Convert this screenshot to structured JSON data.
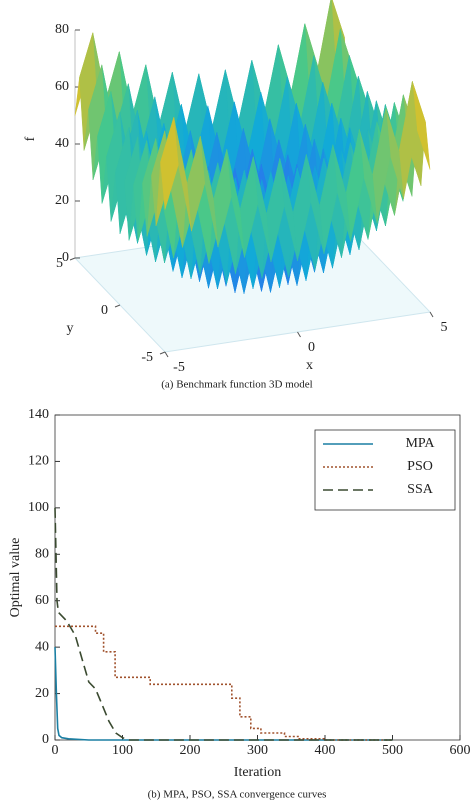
{
  "chart_data": [
    {
      "type": "surface",
      "caption": "(a) Benchmark function 3D model",
      "xlabel": "x",
      "ylabel": "y",
      "zlabel": "f",
      "x": [
        -5,
        -4.5,
        -4,
        -3.5,
        -3,
        -2.5,
        -2,
        -1.5,
        -1,
        -0.5,
        0,
        0.5,
        1,
        1.5,
        2,
        2.5,
        3,
        3.5,
        4,
        4.5,
        5
      ],
      "y": [
        -5,
        -4.5,
        -4,
        -3.5,
        -3,
        -2.5,
        -2,
        -1.5,
        -1,
        -0.5,
        0,
        0.5,
        1,
        1.5,
        2,
        2.5,
        3,
        3.5,
        4,
        4.5,
        5
      ],
      "z": [
        [
          50,
          65,
          41,
          57,
          34,
          51,
          29,
          47,
          26,
          45,
          25,
          45,
          26,
          47,
          29,
          51,
          34,
          57,
          41,
          65,
          50
        ],
        [
          65,
          80,
          56,
          72,
          49,
          66,
          44,
          62,
          41,
          60,
          40,
          60,
          41,
          62,
          44,
          66,
          49,
          72,
          56,
          80,
          65
        ],
        [
          41,
          56,
          32,
          48,
          25,
          42,
          20,
          38,
          17,
          36,
          16,
          36,
          17,
          38,
          20,
          42,
          25,
          48,
          32,
          56,
          41
        ],
        [
          57,
          72,
          48,
          64,
          41,
          58,
          36,
          54,
          33,
          52,
          32,
          52,
          33,
          54,
          36,
          58,
          41,
          64,
          48,
          72,
          57
        ],
        [
          34,
          49,
          25,
          41,
          18,
          35,
          13,
          31,
          10,
          29,
          9,
          29,
          10,
          31,
          13,
          35,
          18,
          41,
          25,
          49,
          34
        ],
        [
          51,
          66,
          42,
          58,
          35,
          52,
          30,
          48,
          27,
          46,
          26,
          46,
          27,
          48,
          30,
          52,
          35,
          58,
          42,
          66,
          51
        ],
        [
          29,
          44,
          20,
          36,
          13,
          30,
          8,
          26,
          5,
          24,
          4,
          24,
          5,
          26,
          8,
          30,
          13,
          36,
          20,
          44,
          29
        ],
        [
          47,
          62,
          38,
          54,
          31,
          48,
          26,
          44,
          23,
          42,
          22,
          42,
          23,
          44,
          26,
          48,
          31,
          54,
          38,
          62,
          47
        ],
        [
          26,
          41,
          17,
          33,
          10,
          27,
          5,
          23,
          2,
          21,
          1,
          21,
          2,
          23,
          5,
          27,
          10,
          33,
          17,
          41,
          26
        ],
        [
          45,
          60,
          36,
          52,
          29,
          46,
          24,
          42,
          21,
          40,
          20,
          40,
          21,
          42,
          24,
          46,
          29,
          52,
          36,
          60,
          45
        ],
        [
          25,
          40,
          16,
          32,
          9,
          26,
          4,
          22,
          1,
          20,
          0,
          20,
          1,
          22,
          4,
          26,
          9,
          32,
          16,
          40,
          25
        ],
        [
          45,
          60,
          36,
          52,
          29,
          46,
          24,
          42,
          21,
          40,
          20,
          40,
          21,
          42,
          24,
          46,
          29,
          52,
          36,
          60,
          45
        ],
        [
          26,
          41,
          17,
          33,
          10,
          27,
          5,
          23,
          2,
          21,
          1,
          21,
          2,
          23,
          5,
          27,
          10,
          33,
          17,
          41,
          26
        ],
        [
          47,
          62,
          38,
          54,
          31,
          48,
          26,
          44,
          23,
          42,
          22,
          42,
          23,
          44,
          26,
          48,
          31,
          54,
          38,
          62,
          47
        ],
        [
          29,
          44,
          20,
          36,
          13,
          30,
          8,
          26,
          5,
          24,
          4,
          24,
          5,
          26,
          8,
          30,
          13,
          36,
          20,
          44,
          29
        ],
        [
          51,
          66,
          42,
          58,
          35,
          52,
          30,
          48,
          27,
          46,
          26,
          46,
          27,
          48,
          30,
          52,
          35,
          58,
          42,
          66,
          51
        ],
        [
          34,
          49,
          25,
          41,
          18,
          35,
          13,
          31,
          10,
          29,
          9,
          29,
          10,
          31,
          13,
          35,
          18,
          41,
          25,
          49,
          34
        ],
        [
          57,
          72,
          48,
          64,
          41,
          58,
          36,
          54,
          33,
          52,
          32,
          52,
          33,
          54,
          36,
          58,
          41,
          64,
          48,
          72,
          57
        ],
        [
          41,
          56,
          32,
          48,
          25,
          42,
          20,
          38,
          17,
          36,
          16,
          36,
          17,
          38,
          20,
          42,
          25,
          48,
          32,
          56,
          41
        ],
        [
          65,
          80,
          56,
          72,
          49,
          66,
          44,
          62,
          41,
          60,
          40,
          60,
          41,
          62,
          44,
          66,
          49,
          72,
          56,
          80,
          65
        ],
        [
          50,
          65,
          41,
          57,
          34,
          51,
          29,
          47,
          26,
          45,
          25,
          45,
          26,
          47,
          29,
          51,
          34,
          57,
          41,
          65,
          50
        ]
      ],
      "xlim": [
        -5,
        5
      ],
      "ylim": [
        -5,
        5
      ],
      "zlim": [
        0,
        80
      ],
      "xticks": [
        -5,
        0,
        5
      ],
      "yticks": [
        -5,
        0,
        5
      ],
      "zticks": [
        0,
        20,
        40,
        60,
        80
      ]
    },
    {
      "type": "line",
      "caption": "(b) MPA, PSO, SSA convergence curves",
      "xlabel": "Iteration",
      "ylabel": "Optimal value",
      "xlim": [
        0,
        600
      ],
      "ylim": [
        0,
        140
      ],
      "xticks": [
        0,
        100,
        200,
        300,
        400,
        500,
        600
      ],
      "yticks": [
        0,
        20,
        40,
        60,
        80,
        100,
        120,
        140
      ],
      "legend": "upper right",
      "series": [
        {
          "name": "MPA",
          "color": "#1a7fa3",
          "style": "solid",
          "x": [
            0,
            2,
            4,
            6,
            10,
            20,
            50,
            500
          ],
          "values": [
            40,
            20,
            5,
            2,
            1,
            0.5,
            0,
            0
          ]
        },
        {
          "name": "PSO",
          "color": "#a0522d",
          "style": "dotted",
          "x": [
            0,
            60,
            60,
            72,
            72,
            89,
            89,
            141,
            141,
            262,
            262,
            274,
            274,
            290,
            290,
            305,
            305,
            340,
            340,
            360,
            360,
            400,
            400,
            500
          ],
          "values": [
            49,
            49,
            46,
            46,
            38,
            38,
            27,
            27,
            24,
            24,
            18,
            18,
            10,
            10,
            5,
            5,
            3,
            3,
            1.5,
            1.5,
            0.5,
            0.5,
            0,
            0
          ]
        },
        {
          "name": "SSA",
          "color": "#3a4a30",
          "style": "dashed",
          "x": [
            0,
            3,
            5,
            15,
            20,
            30,
            40,
            50,
            60,
            70,
            80,
            90,
            100,
            110,
            500
          ],
          "values": [
            100,
            60,
            55,
            52,
            50,
            45,
            35,
            25,
            22,
            15,
            8,
            3,
            1,
            0,
            0
          ]
        }
      ]
    }
  ]
}
